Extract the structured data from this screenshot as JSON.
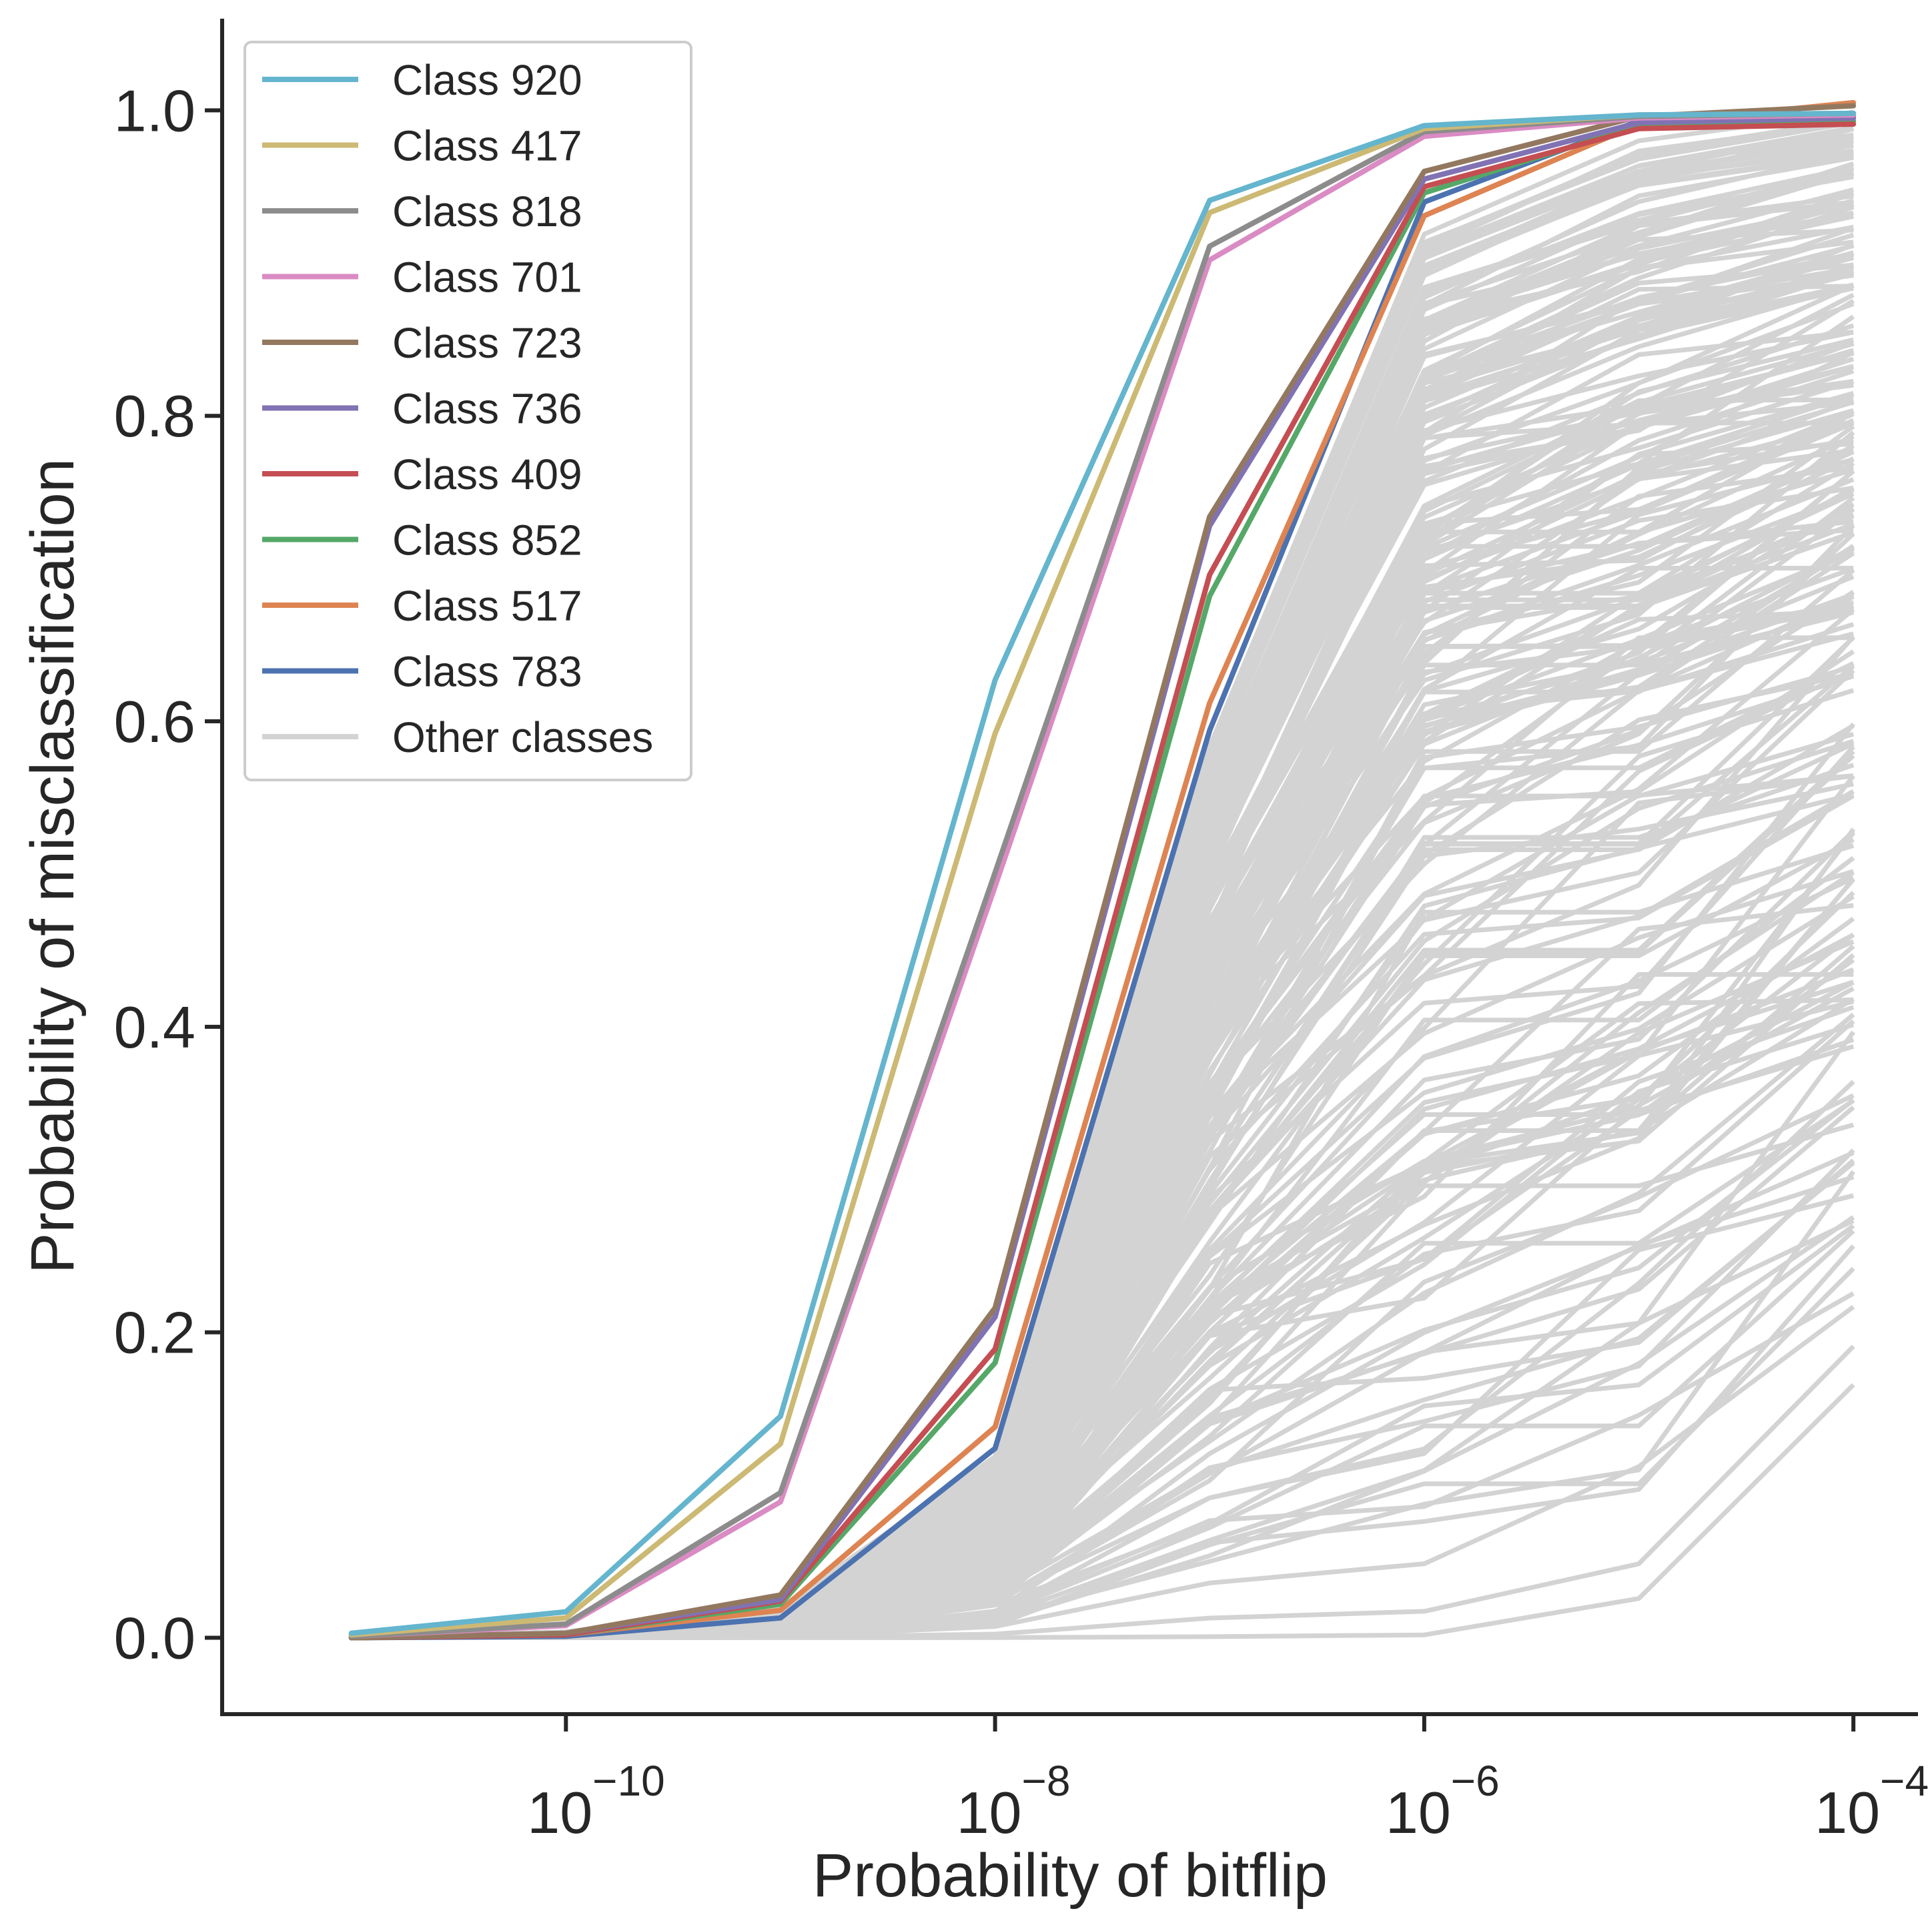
{
  "chart_data": {
    "type": "line",
    "xlabel": "Probability of bitflip",
    "ylabel": "Probability of misclassification",
    "x_scale": "log",
    "x": [
      1e-11,
      1e-10,
      1e-09,
      1e-08,
      1e-07,
      1e-06,
      1e-05,
      0.0001
    ],
    "xlim": [
      2.5e-12,
      0.0002
    ],
    "ylim": [
      -0.05,
      1.06
    ],
    "xticks": [
      {
        "base": "10",
        "exponent": "−10"
      },
      {
        "base": "10",
        "exponent": "−8"
      },
      {
        "base": "10",
        "exponent": "−6"
      },
      {
        "base": "10",
        "exponent": "−4"
      }
    ],
    "yticks": [
      "0.0",
      "0.2",
      "0.4",
      "0.6",
      "0.8",
      "1.0"
    ],
    "grid": false,
    "legend_position": "top-left",
    "series": [
      {
        "name": "Class 920",
        "color": "#64b5cd",
        "values": [
          0.003,
          0.017,
          0.145,
          0.627,
          0.941,
          0.99,
          0.997,
          0.998
        ]
      },
      {
        "name": "Class 417",
        "color": "#ccb974",
        "values": [
          0.002,
          0.013,
          0.127,
          0.592,
          0.933,
          0.988,
          0.997,
          0.998
        ]
      },
      {
        "name": "Class 818",
        "color": "#8c8c8c",
        "values": [
          0.001,
          0.009,
          0.095,
          0.501,
          0.911,
          0.986,
          0.996,
          0.998
        ]
      },
      {
        "name": "Class 701",
        "color": "#da8bc3",
        "values": [
          0.001,
          0.008,
          0.089,
          0.492,
          0.902,
          0.983,
          0.995,
          0.997
        ]
      },
      {
        "name": "Class 723",
        "color": "#937860",
        "values": [
          0.0,
          0.003,
          0.028,
          0.216,
          0.734,
          0.96,
          0.996,
          1.003
        ]
      },
      {
        "name": "Class 736",
        "color": "#8172b3",
        "values": [
          0.0,
          0.003,
          0.025,
          0.21,
          0.728,
          0.955,
          0.992,
          0.995
        ]
      },
      {
        "name": "Class 409",
        "color": "#c44e52",
        "values": [
          0.0,
          0.002,
          0.024,
          0.189,
          0.696,
          0.95,
          0.988,
          0.991
        ]
      },
      {
        "name": "Class 852",
        "color": "#55a868",
        "values": [
          0.0,
          0.002,
          0.022,
          0.18,
          0.682,
          0.946,
          0.99,
          0.993
        ]
      },
      {
        "name": "Class 517",
        "color": "#dd8452",
        "values": [
          0.0,
          0.002,
          0.018,
          0.138,
          0.612,
          0.931,
          0.991,
          1.005
        ]
      },
      {
        "name": "Class 783",
        "color": "#4c72b0",
        "values": [
          0.0,
          0.001,
          0.013,
          0.124,
          0.594,
          0.94,
          0.993,
          0.996
        ]
      }
    ],
    "background_series": {
      "name": "Other classes",
      "color": "#d3d3d3",
      "value_ranges": [
        [
          0.0,
          0.0
        ],
        [
          0.0,
          0.004
        ],
        [
          0.0,
          0.02
        ],
        [
          0.0,
          0.12
        ],
        [
          0.0,
          0.59
        ],
        [
          0.0,
          0.93
        ],
        [
          0.025,
          0.99
        ],
        [
          0.165,
          1.01
        ]
      ]
    }
  }
}
